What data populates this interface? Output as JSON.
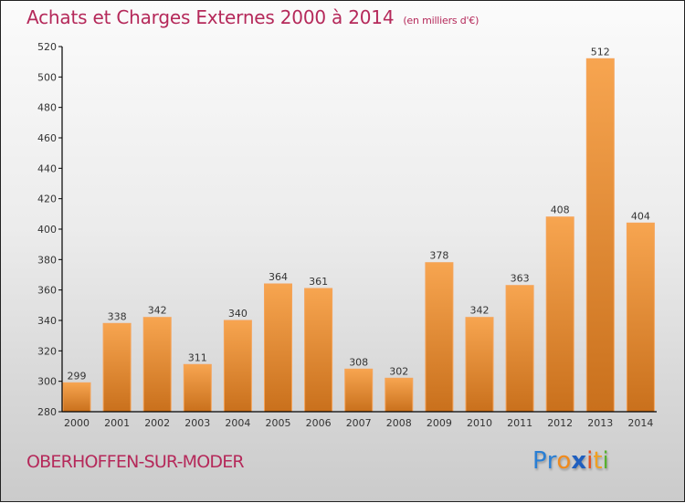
{
  "header": {
    "title": "Achats et Charges Externes 2000 à 2014",
    "unit": "(en milliers d'€)"
  },
  "footer": {
    "commune": "OBERHOFFEN-SUR-MODER",
    "logo_letters": [
      {
        "char": "P",
        "color": "#2a7fd4"
      },
      {
        "char": "r",
        "color": "#2a7fd4"
      },
      {
        "char": "o",
        "color": "#f08a1c"
      },
      {
        "char": "x",
        "color": "#1f5fbf"
      },
      {
        "char": "i",
        "color": "#e8501c"
      },
      {
        "char": "t",
        "color": "#f0a020"
      },
      {
        "char": "i",
        "color": "#58b030"
      }
    ]
  },
  "colors": {
    "title": "#b5295a",
    "bar_top": "#f7a550",
    "bar_bottom": "#c9701c",
    "axis": "#000000"
  },
  "chart_data": {
    "type": "bar",
    "title": "Achats et Charges Externes 2000 à 2014 (en milliers d'€)",
    "xlabel": "",
    "ylabel": "",
    "categories": [
      "2000",
      "2001",
      "2002",
      "2003",
      "2004",
      "2005",
      "2006",
      "2007",
      "2008",
      "2009",
      "2010",
      "2011",
      "2012",
      "2013",
      "2014"
    ],
    "values": [
      299,
      338,
      342,
      311,
      340,
      364,
      361,
      308,
      302,
      378,
      342,
      363,
      408,
      512,
      404
    ],
    "ylim": [
      280,
      520
    ],
    "yticks": [
      280,
      300,
      320,
      340,
      360,
      380,
      400,
      420,
      440,
      460,
      480,
      500,
      520
    ],
    "grid": false,
    "legend": "none",
    "data_labels": true
  }
}
